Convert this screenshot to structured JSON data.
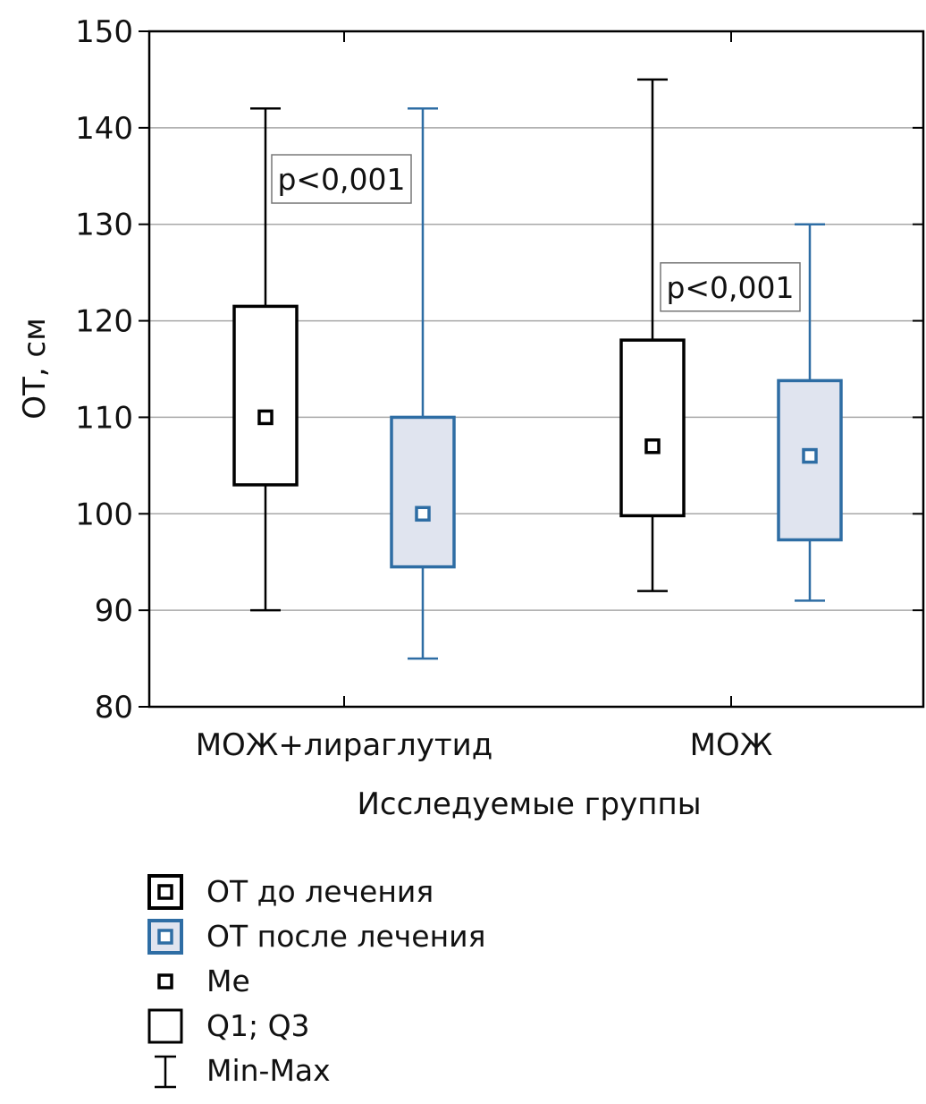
{
  "chart_data": {
    "type": "box",
    "xlabel": "Исследуемые группы",
    "ylabel": "ОТ, см",
    "ylim": [
      80,
      150
    ],
    "yticks": [
      "80",
      "90",
      "100",
      "110",
      "120",
      "130",
      "140",
      "150"
    ],
    "grid": true,
    "legend_position": "bottom",
    "colors": {
      "before": "#000000",
      "after": "#2e6da4",
      "after_fill": "#e0e4ef",
      "grid": "#a8a8a8"
    },
    "categories": [
      "МОЖ+лираглутид",
      "МОЖ"
    ],
    "series": [
      {
        "name": "ОТ до лечения",
        "stroke": "#000000",
        "fill": "#ffffff",
        "boxes": [
          {
            "min": 90,
            "q1": 103,
            "median": 110,
            "q3": 121.5,
            "max": 142
          },
          {
            "min": 92,
            "q1": 99.8,
            "median": 107,
            "q3": 118,
            "max": 145
          }
        ]
      },
      {
        "name": "ОТ после лечения",
        "stroke": "#2e6da4",
        "fill": "#e0e4ef",
        "boxes": [
          {
            "min": 85,
            "q1": 94.5,
            "median": 100,
            "q3": 110,
            "max": 142
          },
          {
            "min": 91,
            "q1": 97.3,
            "median": 106,
            "q3": 113.8,
            "max": 130
          }
        ]
      }
    ],
    "annotations": [
      {
        "text": "p<0,001",
        "category": "МОЖ+лираглутид",
        "y": 134.7
      },
      {
        "text": "p<0,001",
        "category": "МОЖ",
        "y": 123.5
      }
    ]
  },
  "legend": {
    "items": [
      {
        "label": "ОТ до лечения",
        "icon": "box-with-median-icon"
      },
      {
        "label": "ОТ после лечения",
        "icon": "blue-box-with-median-icon"
      },
      {
        "label": "Me",
        "icon": "median-marker-icon"
      },
      {
        "label": "Q1; Q3",
        "icon": "quartile-box-icon"
      },
      {
        "label": "Min-Max",
        "icon": "whisker-icon"
      }
    ]
  }
}
